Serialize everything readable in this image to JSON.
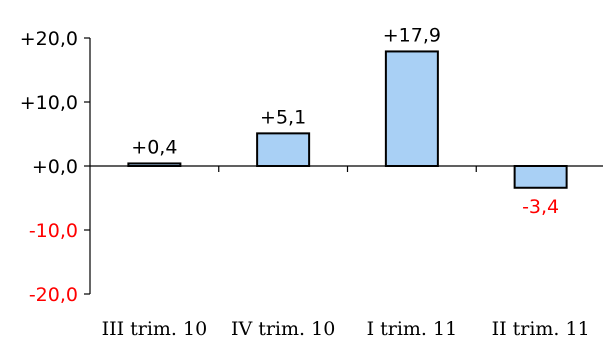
{
  "chart_data": {
    "type": "bar",
    "categories": [
      "III trim. 10",
      "IV trim. 10",
      "I trim. 11",
      "II trim. 11"
    ],
    "values": [
      0.4,
      5.1,
      17.9,
      -3.4
    ],
    "data_labels": [
      "+0,4",
      "+5,1",
      "+17,9",
      "-3,4"
    ],
    "y_ticks": [
      20,
      10,
      0,
      -10,
      -20
    ],
    "y_tick_labels": [
      "+20,0",
      "+10,0",
      "+0,0",
      "-10,0",
      "-20,0"
    ],
    "ylim": [
      -20,
      20
    ],
    "title": "",
    "xlabel": "",
    "ylabel": "",
    "grid": false,
    "legend": "none",
    "colors": {
      "bar_fill": "#a9d0f5",
      "bar_stroke": "#000000",
      "positive_text": "#000000",
      "negative_text": "#ff0000",
      "axis": "#000000"
    }
  }
}
